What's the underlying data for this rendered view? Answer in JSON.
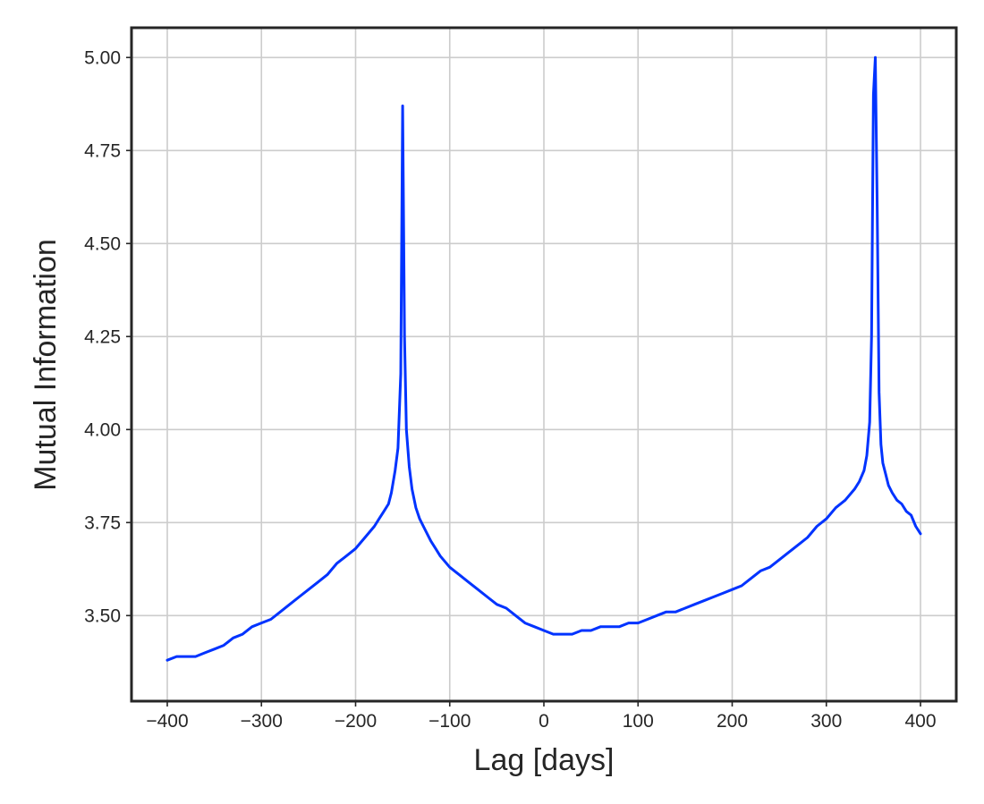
{
  "chart_data": {
    "type": "line",
    "title": "",
    "xlabel": "Lag [days]",
    "ylabel": "Mutual Information",
    "xlim": [
      -438,
      438
    ],
    "ylim": [
      3.27,
      5.08
    ],
    "xticks": [
      -400,
      -300,
      -200,
      -100,
      0,
      100,
      200,
      300,
      400
    ],
    "xtick_labels": [
      "−400",
      "−300",
      "−200",
      "−100",
      "0",
      "100",
      "200",
      "300",
      "400"
    ],
    "yticks": [
      3.5,
      3.75,
      4.0,
      4.25,
      4.5,
      4.75,
      5.0
    ],
    "ytick_labels": [
      "3.50",
      "3.75",
      "4.00",
      "4.25",
      "4.50",
      "4.75",
      "5.00"
    ],
    "grid": true,
    "line_color": "#0033ff",
    "series": [
      {
        "x": [
          -400,
          -390,
          -380,
          -370,
          -360,
          -350,
          -340,
          -330,
          -320,
          -310,
          -300,
          -290,
          -280,
          -270,
          -260,
          -250,
          -240,
          -230,
          -220,
          -210,
          -200,
          -190,
          -180,
          -175,
          -170,
          -165,
          -162,
          -158,
          -155,
          -152,
          -150,
          -148,
          -146,
          -143,
          -140,
          -136,
          -132,
          -128,
          -124,
          -120,
          -115,
          -110,
          -100,
          -90,
          -80,
          -70,
          -60,
          -50,
          -40,
          -30,
          -20,
          -10,
          0,
          10,
          20,
          30,
          40,
          50,
          60,
          70,
          80,
          90,
          100,
          110,
          120,
          130,
          140,
          150,
          160,
          170,
          180,
          190,
          200,
          210,
          220,
          230,
          240,
          250,
          260,
          270,
          280,
          290,
          300,
          310,
          320,
          330,
          335,
          340,
          343,
          346,
          348,
          350,
          352,
          354,
          356,
          358,
          360,
          363,
          366,
          370,
          375,
          380,
          385,
          390,
          395,
          400
        ],
        "y": [
          3.38,
          3.39,
          3.39,
          3.39,
          3.4,
          3.41,
          3.42,
          3.44,
          3.45,
          3.47,
          3.48,
          3.49,
          3.51,
          3.53,
          3.55,
          3.57,
          3.59,
          3.61,
          3.64,
          3.66,
          3.68,
          3.71,
          3.74,
          3.76,
          3.78,
          3.8,
          3.83,
          3.89,
          3.95,
          4.15,
          4.87,
          4.25,
          4.0,
          3.9,
          3.84,
          3.79,
          3.76,
          3.74,
          3.72,
          3.7,
          3.68,
          3.66,
          3.63,
          3.61,
          3.59,
          3.57,
          3.55,
          3.53,
          3.52,
          3.5,
          3.48,
          3.47,
          3.46,
          3.45,
          3.45,
          3.45,
          3.46,
          3.46,
          3.47,
          3.47,
          3.47,
          3.48,
          3.48,
          3.49,
          3.5,
          3.51,
          3.51,
          3.52,
          3.53,
          3.54,
          3.55,
          3.56,
          3.57,
          3.58,
          3.6,
          3.62,
          3.63,
          3.65,
          3.67,
          3.69,
          3.71,
          3.74,
          3.76,
          3.79,
          3.81,
          3.84,
          3.86,
          3.89,
          3.93,
          4.02,
          4.25,
          4.9,
          5.0,
          4.6,
          4.1,
          3.96,
          3.91,
          3.88,
          3.85,
          3.83,
          3.81,
          3.8,
          3.78,
          3.77,
          3.74,
          3.72
        ]
      }
    ]
  }
}
